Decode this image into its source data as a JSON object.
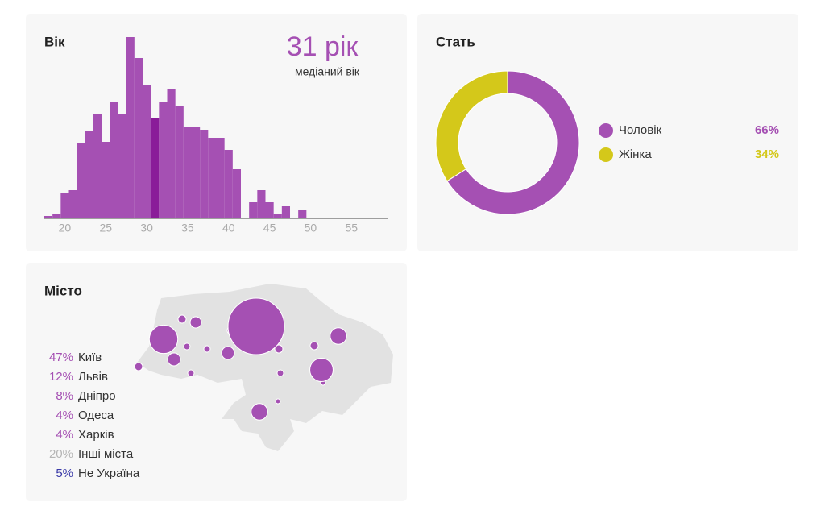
{
  "chart_data": [
    {
      "type": "histogram",
      "title": "Вік",
      "median": {
        "value": 31,
        "label": "31 рік"
      },
      "subtitle": "медіаний вік",
      "bins": [
        17.5,
        18.5,
        19.5,
        20.5,
        21.5,
        22.5,
        23.5,
        24.5,
        25.5,
        26.5,
        27.5,
        28.5,
        29.5,
        30.5,
        31.5,
        32.5,
        33.5,
        34.5,
        35.5,
        36.5,
        37.5,
        38.5,
        39.5,
        40.5,
        41.5,
        42.5,
        43.5,
        44.5,
        45.5,
        46.5,
        47.5,
        48.5,
        49.5
      ],
      "values": [
        3,
        6,
        31,
        35,
        94,
        109,
        130,
        95,
        144,
        130,
        225,
        199,
        165,
        125,
        145,
        160,
        140,
        114,
        114,
        110,
        100,
        100,
        85,
        61,
        0,
        20,
        35,
        20,
        5,
        15,
        0,
        10
      ],
      "color": "#a550b3",
      "highlight_color": "#8a1c99",
      "xlim": [
        17.5,
        59.5
      ],
      "xticks": [
        20,
        25,
        30,
        35,
        40,
        45,
        50,
        55
      ],
      "ylim": [
        0,
        225
      ]
    },
    {
      "type": "pie",
      "title": "Стать",
      "categories": [
        "Чоловік",
        "Жінка"
      ],
      "values": [
        66,
        34
      ],
      "value_labels": [
        "66%",
        "34%"
      ],
      "colors": [
        "#a550b3",
        "#d4c81a"
      ]
    },
    {
      "type": "map",
      "title": "Місто",
      "categories": [
        "Київ",
        "Львів",
        "Дніпро",
        "Одеса",
        "Харків",
        "Інші міста",
        "Не Україна"
      ],
      "values": [
        47,
        12,
        8,
        4,
        4,
        20,
        5
      ],
      "value_labels": [
        "47%",
        "12%",
        "8%",
        "4%",
        "4%",
        "20%",
        "5%"
      ],
      "colors": [
        "#a550b3",
        "#a550b3",
        "#a550b3",
        "#a550b3",
        "#a550b3",
        "#b5b5b5",
        "#3b3ba8"
      ]
    }
  ]
}
